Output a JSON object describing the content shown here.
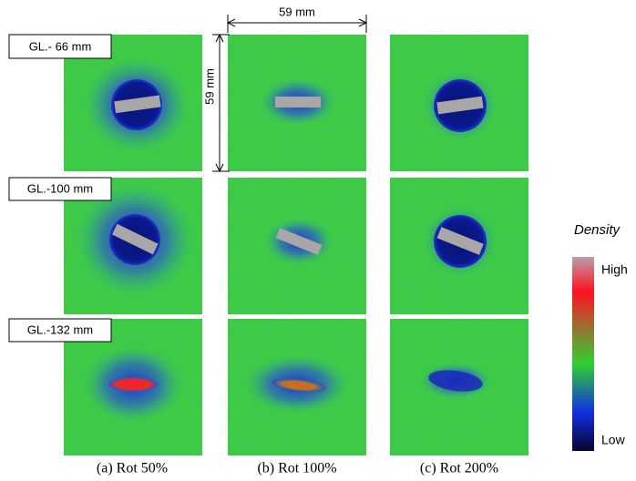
{
  "row_labels": [
    "GL.- 66 mm",
    "GL.-100 mm",
    "GL.-132 mm"
  ],
  "column_labels": [
    "(a) Rot 50%",
    "(b) Rot 100%",
    "(c) Rot 200%"
  ],
  "dimensions": {
    "width": "59 mm",
    "height": "59 mm"
  },
  "legend": {
    "title": "Density",
    "high": "High",
    "low": "Low"
  }
}
